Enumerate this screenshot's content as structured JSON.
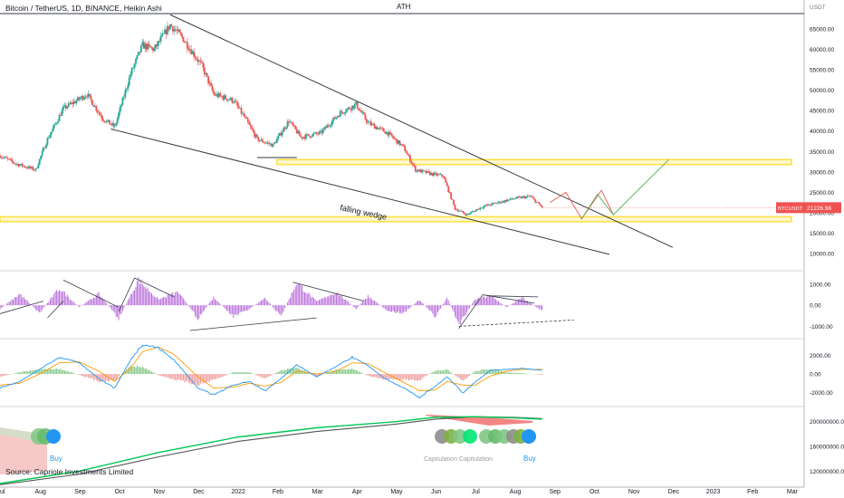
{
  "chart_data": {
    "type": "candlestick",
    "title": "Bitcoin / TetherUS, 1D, BINANCE, Heikin Ashi",
    "ath_label": "ATH",
    "price_axis_label": "USDT",
    "price_ticks": [
      "65000.00",
      "60000.00",
      "55000.00",
      "50000.00",
      "45000.00",
      "40000.00",
      "35000.00",
      "30000.00",
      "25000.00",
      "20000.00",
      "15000.00",
      "10000.00"
    ],
    "price_tick_values": [
      65000,
      60000,
      55000,
      50000,
      45000,
      40000,
      35000,
      30000,
      25000,
      20000,
      15000,
      10000
    ],
    "price_range": [
      6000,
      69000
    ],
    "x_range_months": [
      0,
      20.3
    ],
    "x_ticks": [
      {
        "label": "Jul",
        "m": 0
      },
      {
        "label": "Aug",
        "m": 1
      },
      {
        "label": "Sep",
        "m": 2
      },
      {
        "label": "Oct",
        "m": 3
      },
      {
        "label": "Nov",
        "m": 4
      },
      {
        "label": "Dec",
        "m": 5
      },
      {
        "label": "2022",
        "m": 6
      },
      {
        "label": "Feb",
        "m": 7
      },
      {
        "label": "Mar",
        "m": 8
      },
      {
        "label": "Apr",
        "m": 9
      },
      {
        "label": "May",
        "m": 10
      },
      {
        "label": "Jun",
        "m": 11
      },
      {
        "label": "Jul",
        "m": 12
      },
      {
        "label": "Aug",
        "m": 13
      },
      {
        "label": "Sep",
        "m": 14
      },
      {
        "label": "Oct",
        "m": 15
      },
      {
        "label": "Nov",
        "m": 16
      },
      {
        "label": "Dec",
        "m": 17
      },
      {
        "label": "2023",
        "m": 18
      },
      {
        "label": "Feb",
        "m": 19
      },
      {
        "label": "Mar",
        "m": 20
      }
    ],
    "price_path": [
      [
        0,
        34000
      ],
      [
        0.4,
        32000
      ],
      [
        0.9,
        30500
      ],
      [
        1.2,
        38000
      ],
      [
        1.6,
        45500
      ],
      [
        2.2,
        49000
      ],
      [
        2.6,
        43000
      ],
      [
        2.9,
        41000
      ],
      [
        3.3,
        54000
      ],
      [
        3.6,
        61000
      ],
      [
        3.9,
        60000
      ],
      [
        4.3,
        66000
      ],
      [
        4.6,
        63000
      ],
      [
        5.1,
        56000
      ],
      [
        5.4,
        49000
      ],
      [
        5.9,
        47500
      ],
      [
        6.2,
        43000
      ],
      [
        6.5,
        38000
      ],
      [
        6.9,
        36500
      ],
      [
        7.3,
        42500
      ],
      [
        7.6,
        38500
      ],
      [
        8.1,
        39500
      ],
      [
        8.6,
        44500
      ],
      [
        9.0,
        46500
      ],
      [
        9.3,
        42000
      ],
      [
        9.8,
        39500
      ],
      [
        10.2,
        36000
      ],
      [
        10.5,
        30500
      ],
      [
        10.9,
        29500
      ],
      [
        11.2,
        29000
      ],
      [
        11.5,
        21000
      ],
      [
        11.8,
        19500
      ],
      [
        12.2,
        21500
      ],
      [
        12.6,
        22500
      ],
      [
        13.0,
        23500
      ],
      [
        13.4,
        24000
      ],
      [
        13.7,
        21300
      ]
    ],
    "current_price": {
      "label": "BTCUSDT",
      "value": "21226.96",
      "y": 21227
    },
    "annotations": {
      "wedge_label": "falling wedge",
      "buy_left": "Buy",
      "buy_right": "Buy",
      "capitulation": "Capitulation Capitulation"
    },
    "support_zones": [
      {
        "m0": 7.0,
        "m1": 20.0,
        "y0": 31800,
        "y1": 33000
      },
      {
        "m0": -0.1,
        "m1": 20.0,
        "y0": 17800,
        "y1": 19000
      }
    ],
    "wedge_lines": [
      {
        "from": [
          4.3,
          68500
        ],
        "to": [
          17.0,
          11500
        ]
      },
      {
        "from": [
          2.8,
          40500
        ],
        "to": [
          15.4,
          9800
        ]
      },
      {
        "from": [
          6.5,
          33500
        ],
        "to": [
          7.5,
          33500
        ]
      }
    ],
    "projection_path_red": [
      [
        13.9,
        22500
      ],
      [
        14.3,
        25000
      ],
      [
        14.7,
        18500
      ],
      [
        15.2,
        25500
      ],
      [
        15.5,
        19500
      ]
    ],
    "projection_path_green": [
      [
        14.7,
        18500
      ],
      [
        15.1,
        24500
      ],
      [
        15.5,
        19500
      ],
      [
        16.9,
        33000
      ]
    ],
    "osc1_axis": {
      "ticks": [
        "1000.00",
        "0.00",
        "-1000.00"
      ],
      "values": [
        1000,
        0,
        -1000
      ],
      "range": [
        -1500,
        1600
      ]
    },
    "osc1_values": [
      [
        0,
        -200
      ],
      [
        0.5,
        600
      ],
      [
        1.0,
        -400
      ],
      [
        1.5,
        900
      ],
      [
        2.0,
        -100
      ],
      [
        2.5,
        600
      ],
      [
        3.0,
        -700
      ],
      [
        3.5,
        1350
      ],
      [
        4.0,
        300
      ],
      [
        4.5,
        700
      ],
      [
        5.0,
        -700
      ],
      [
        5.4,
        400
      ],
      [
        5.9,
        -600
      ],
      [
        6.3,
        -200
      ],
      [
        6.7,
        400
      ],
      [
        7.1,
        -600
      ],
      [
        7.5,
        1200
      ],
      [
        8.0,
        200
      ],
      [
        8.5,
        700
      ],
      [
        9.0,
        -200
      ],
      [
        9.3,
        500
      ],
      [
        9.8,
        -300
      ],
      [
        10.2,
        -400
      ],
      [
        10.6,
        300
      ],
      [
        11.0,
        -600
      ],
      [
        11.3,
        400
      ],
      [
        11.6,
        -1000
      ],
      [
        12.0,
        300
      ],
      [
        12.4,
        500
      ],
      [
        12.8,
        -100
      ],
      [
        13.2,
        400
      ],
      [
        13.7,
        -300
      ]
    ],
    "osc1_lines": [
      {
        "from": [
          0,
          -400
        ],
        "to": [
          1.1,
          200
        ]
      },
      {
        "from": [
          1.2,
          -600
        ],
        "to": [
          1.6,
          200
        ]
      },
      {
        "from": [
          1.6,
          1200
        ],
        "to": [
          3.0,
          -100
        ]
      },
      {
        "from": [
          3.0,
          -300
        ],
        "to": [
          3.4,
          1300
        ]
      },
      {
        "from": [
          3.4,
          1300
        ],
        "to": [
          4.4,
          400
        ]
      },
      {
        "from": [
          4.8,
          -1200
        ],
        "to": [
          8.0,
          -600
        ]
      },
      {
        "from": [
          7.4,
          1100
        ],
        "to": [
          9.2,
          200
        ]
      },
      {
        "from": [
          11.6,
          -1100
        ],
        "to": [
          12.2,
          500
        ]
      },
      {
        "from": [
          12.2,
          500
        ],
        "to": [
          13.5,
          100
        ]
      },
      {
        "from": [
          12.3,
          450
        ],
        "to": [
          13.6,
          400
        ]
      }
    ],
    "osc1_dashed": {
      "from": [
        11.6,
        -1000
      ],
      "to": [
        14.5,
        -700
      ]
    },
    "osc2_axis": {
      "ticks": [
        "2000.00",
        "0.00",
        "-2000.00"
      ],
      "values": [
        2000,
        0,
        -2000
      ],
      "range": [
        -3200,
        3600
      ]
    },
    "osc2_macd": [
      [
        0,
        -1500
      ],
      [
        0.5,
        -800
      ],
      [
        1.0,
        500
      ],
      [
        1.5,
        1800
      ],
      [
        2.0,
        1200
      ],
      [
        2.5,
        -500
      ],
      [
        2.9,
        -1500
      ],
      [
        3.3,
        1500
      ],
      [
        3.6,
        3200
      ],
      [
        4.0,
        2800
      ],
      [
        4.4,
        1500
      ],
      [
        5.0,
        -1500
      ],
      [
        5.4,
        -2200
      ],
      [
        5.9,
        -1200
      ],
      [
        6.3,
        -800
      ],
      [
        6.7,
        -1800
      ],
      [
        7.1,
        -500
      ],
      [
        7.5,
        1000
      ],
      [
        8.0,
        -300
      ],
      [
        8.5,
        800
      ],
      [
        8.9,
        1800
      ],
      [
        9.3,
        900
      ],
      [
        9.7,
        -400
      ],
      [
        10.2,
        -1500
      ],
      [
        10.6,
        -2500
      ],
      [
        11.0,
        -1300
      ],
      [
        11.3,
        -300
      ],
      [
        11.7,
        -2000
      ],
      [
        12.0,
        -900
      ],
      [
        12.4,
        400
      ],
      [
        12.8,
        500
      ],
      [
        13.2,
        600
      ],
      [
        13.7,
        400
      ]
    ],
    "osc2_signal": [
      [
        0,
        -1200
      ],
      [
        0.5,
        -1000
      ],
      [
        1.0,
        0
      ],
      [
        1.5,
        1200
      ],
      [
        2.0,
        1300
      ],
      [
        2.5,
        300
      ],
      [
        2.9,
        -800
      ],
      [
        3.3,
        600
      ],
      [
        3.6,
        2400
      ],
      [
        4.0,
        2900
      ],
      [
        4.4,
        2100
      ],
      [
        5.0,
        -300
      ],
      [
        5.4,
        -1500
      ],
      [
        5.9,
        -1400
      ],
      [
        6.3,
        -1000
      ],
      [
        6.7,
        -1300
      ],
      [
        7.1,
        -900
      ],
      [
        7.5,
        300
      ],
      [
        8.0,
        0
      ],
      [
        8.5,
        300
      ],
      [
        8.9,
        1200
      ],
      [
        9.3,
        1100
      ],
      [
        9.7,
        200
      ],
      [
        10.2,
        -900
      ],
      [
        10.6,
        -1800
      ],
      [
        11.0,
        -1700
      ],
      [
        11.3,
        -800
      ],
      [
        11.7,
        -1200
      ],
      [
        12.0,
        -1200
      ],
      [
        12.4,
        -200
      ],
      [
        12.8,
        300
      ],
      [
        13.2,
        500
      ],
      [
        13.7,
        500
      ]
    ],
    "osc3_axis": {
      "ticks": [
        "200000000.00",
        "160000000.00",
        "120000000.00"
      ],
      "values": [
        200000000,
        160000000,
        120000000
      ],
      "range": [
        100000000,
        220000000
      ]
    },
    "osc3_green": [
      [
        0,
        100000000
      ],
      [
        2,
        120000000
      ],
      [
        4,
        150000000
      ],
      [
        6,
        175000000
      ],
      [
        8,
        190000000
      ],
      [
        10,
        200000000
      ],
      [
        11,
        207000000
      ],
      [
        12,
        208000000
      ],
      [
        13,
        206000000
      ],
      [
        13.7,
        204000000
      ]
    ],
    "osc3_black": [
      [
        0,
        98000000
      ],
      [
        2,
        115000000
      ],
      [
        4,
        143000000
      ],
      [
        6,
        168000000
      ],
      [
        8,
        184000000
      ],
      [
        10,
        196000000
      ],
      [
        11,
        204000000
      ],
      [
        12,
        208000000
      ],
      [
        13,
        207000000
      ],
      [
        13.7,
        205000000
      ]
    ]
  },
  "colors": {
    "up": "#26a69a",
    "down": "#ef5350",
    "zone": "#fde047",
    "current": "#ef5350",
    "accent": "#2196f3",
    "wedge": "#363a45"
  }
}
